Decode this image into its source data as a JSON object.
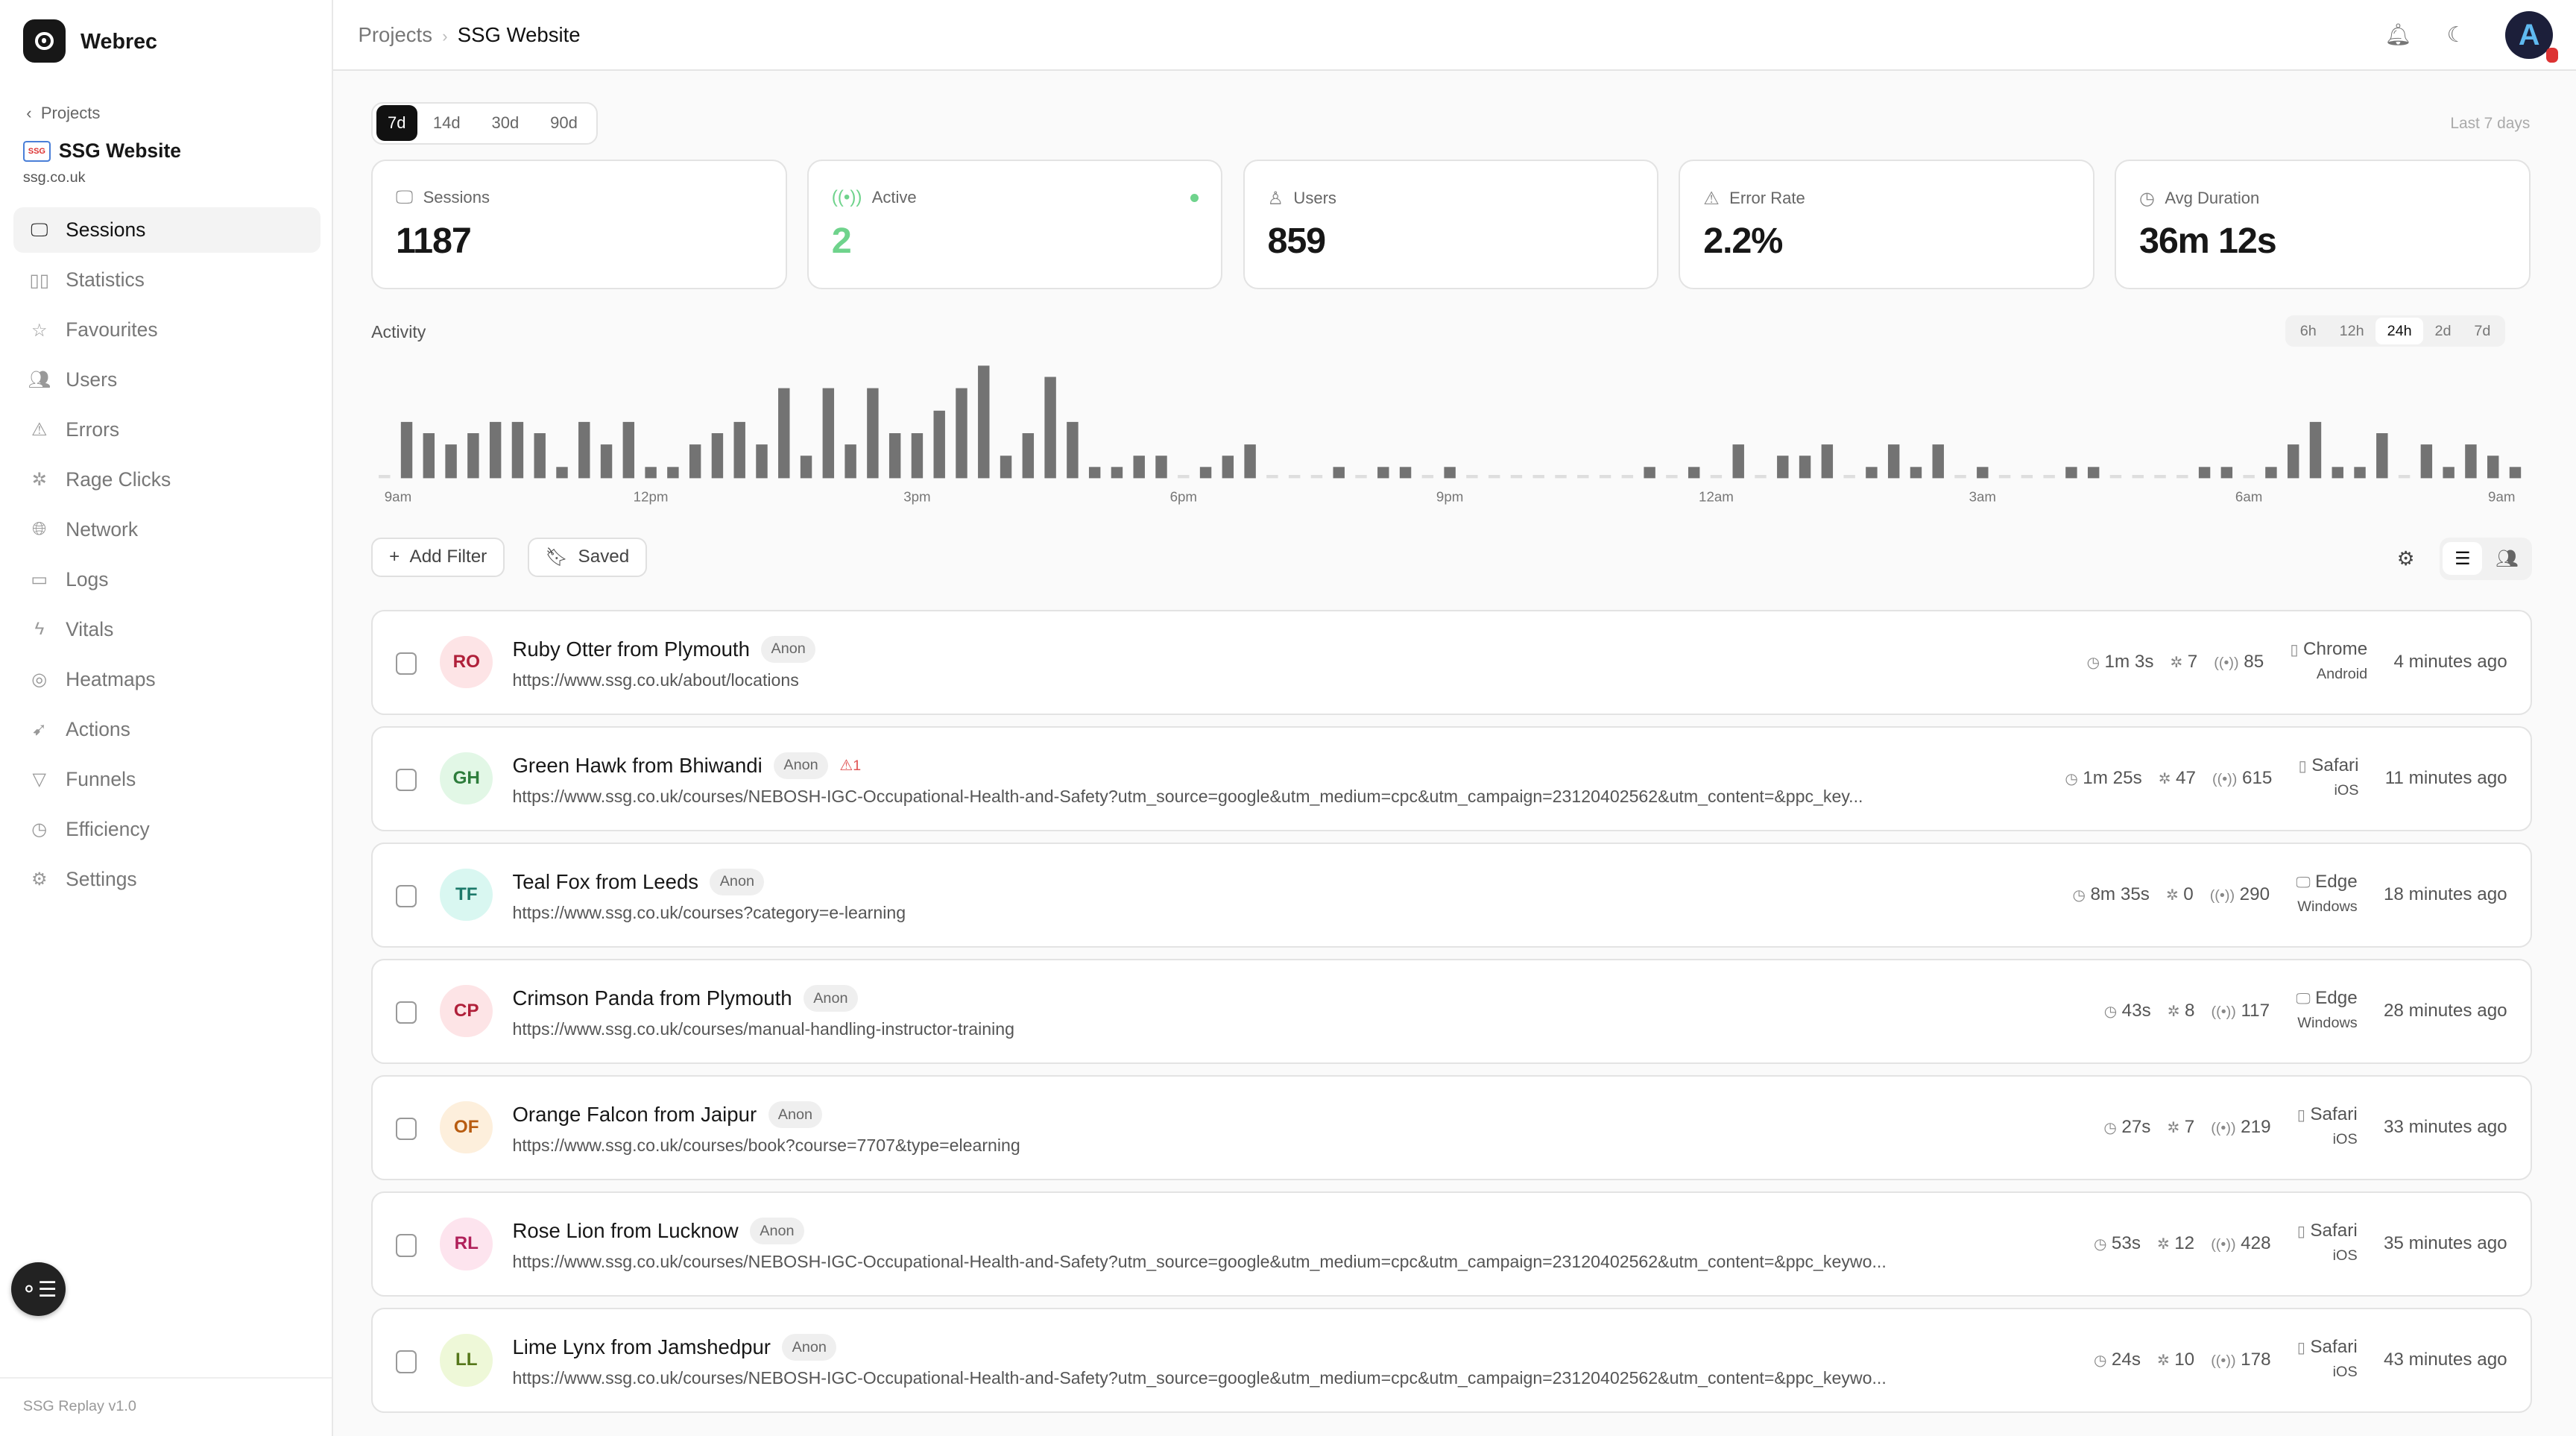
{
  "app": {
    "name": "Webrec",
    "back_label": "Projects",
    "project_name": "SSG Website",
    "project_domain": "ssg.co.uk",
    "version": "SSG Replay v1.0"
  },
  "sidebar": {
    "items": [
      {
        "label": "Sessions",
        "icon": "monitor-icon",
        "active": true
      },
      {
        "label": "Statistics",
        "icon": "bar-chart-icon"
      },
      {
        "label": "Favourites",
        "icon": "star-icon"
      },
      {
        "label": "Users",
        "icon": "users-icon"
      },
      {
        "label": "Errors",
        "icon": "warning-icon"
      },
      {
        "label": "Rage Clicks",
        "icon": "click-burst-icon"
      },
      {
        "label": "Network",
        "icon": "globe-icon"
      },
      {
        "label": "Logs",
        "icon": "terminal-icon"
      },
      {
        "label": "Vitals",
        "icon": "lightning-icon"
      },
      {
        "label": "Heatmaps",
        "icon": "heatmap-icon"
      },
      {
        "label": "Actions",
        "icon": "pointer-icon"
      },
      {
        "label": "Funnels",
        "icon": "funnel-icon"
      },
      {
        "label": "Efficiency",
        "icon": "clock-icon"
      },
      {
        "label": "Settings",
        "icon": "gear-icon"
      }
    ]
  },
  "header": {
    "breadcrumb": [
      "Projects",
      "SSG Website"
    ],
    "avatar_letter": "A"
  },
  "range": {
    "options": [
      "7d",
      "14d",
      "30d",
      "90d"
    ],
    "selected": "7d",
    "caption": "Last 7 days"
  },
  "stats": [
    {
      "label": "Sessions",
      "value": "1187",
      "icon": "monitor-icon"
    },
    {
      "label": "Active",
      "value": "2",
      "icon": "broadcast-icon",
      "color": "#6fd38c"
    },
    {
      "label": "Users",
      "value": "859",
      "icon": "user-icon"
    },
    {
      "label": "Error Rate",
      "value": "2.2%",
      "icon": "warning-icon"
    },
    {
      "label": "Avg Duration",
      "value": "36m 12s",
      "icon": "clock-icon"
    }
  ],
  "activity": {
    "title": "Activity",
    "granularity": [
      "6h",
      "12h",
      "24h",
      "2d",
      "7d"
    ],
    "selected": "24h"
  },
  "chart_data": {
    "type": "bar",
    "x_ticks": [
      "9am",
      "12pm",
      "3pm",
      "6pm",
      "9pm",
      "12am",
      "3am",
      "6am",
      "9am"
    ],
    "bar_color": "#737373",
    "values": [
      0,
      5,
      4,
      3,
      4,
      5,
      5,
      4,
      1,
      5,
      3,
      5,
      1,
      1,
      3,
      4,
      5,
      3,
      8,
      2,
      8,
      3,
      8,
      4,
      4,
      6,
      8,
      10,
      2,
      4,
      9,
      5,
      1,
      1,
      2,
      2,
      0,
      1,
      2,
      3,
      0,
      0,
      0,
      1,
      0,
      1,
      1,
      0,
      1,
      0,
      0,
      0,
      0,
      0,
      0,
      0,
      0,
      1,
      0,
      1,
      0,
      3,
      0,
      2,
      2,
      3,
      0,
      1,
      3,
      1,
      3,
      0,
      1,
      0,
      0,
      0,
      1,
      1,
      0,
      0,
      0,
      0,
      1,
      1,
      0,
      1,
      3,
      5,
      1,
      1,
      4,
      0,
      3,
      1,
      3,
      2,
      1
    ]
  },
  "toolbar": {
    "add_filter": "Add Filter",
    "saved": "Saved"
  },
  "sessions": [
    {
      "initials": "RO",
      "name": "Ruby Otter from Plymouth",
      "badge": "Anon",
      "url": "https://www.ssg.co.uk/about/locations",
      "duration": "1m 3s",
      "clicks": "7",
      "events": "85",
      "browser": "Chrome",
      "os": "Android",
      "device": "phone-icon",
      "ago": "4 minutes ago",
      "bg": "#fde4e6",
      "fg": "#b0203a"
    },
    {
      "initials": "GH",
      "name": "Green Hawk from Bhiwandi",
      "badge": "Anon",
      "errors": "1",
      "url": "https://www.ssg.co.uk/courses/NEBOSH-IGC-Occupational-Health-and-Safety?utm_source=google&utm_medium=cpc&utm_campaign=23120402562&utm_content=&ppc_key...",
      "duration": "1m 25s",
      "clicks": "47",
      "events": "615",
      "browser": "Safari",
      "os": "iOS",
      "device": "phone-icon",
      "ago": "11 minutes ago",
      "bg": "#e2f7e6",
      "fg": "#2e7d3c"
    },
    {
      "initials": "TF",
      "name": "Teal Fox from Leeds",
      "badge": "Anon",
      "url": "https://www.ssg.co.uk/courses?category=e-learning",
      "duration": "8m 35s",
      "clicks": "0",
      "events": "290",
      "browser": "Edge",
      "os": "Windows",
      "device": "monitor-icon",
      "ago": "18 minutes ago",
      "bg": "#d9f7f1",
      "fg": "#1d7a6b"
    },
    {
      "initials": "CP",
      "name": "Crimson Panda from Plymouth",
      "badge": "Anon",
      "url": "https://www.ssg.co.uk/courses/manual-handling-instructor-training",
      "duration": "43s",
      "clicks": "8",
      "events": "117",
      "browser": "Edge",
      "os": "Windows",
      "device": "monitor-icon",
      "ago": "28 minutes ago",
      "bg": "#fde4e6",
      "fg": "#b0203a"
    },
    {
      "initials": "OF",
      "name": "Orange Falcon from Jaipur",
      "badge": "Anon",
      "url": "https://www.ssg.co.uk/courses/book?course=7707&type=elearning",
      "duration": "27s",
      "clicks": "7",
      "events": "219",
      "browser": "Safari",
      "os": "iOS",
      "device": "phone-icon",
      "ago": "33 minutes ago",
      "bg": "#fdefdc",
      "fg": "#b85c10"
    },
    {
      "initials": "RL",
      "name": "Rose Lion from Lucknow",
      "badge": "Anon",
      "url": "https://www.ssg.co.uk/courses/NEBOSH-IGC-Occupational-Health-and-Safety?utm_source=google&utm_medium=cpc&utm_campaign=23120402562&utm_content=&ppc_keywo...",
      "duration": "53s",
      "clicks": "12",
      "events": "428",
      "browser": "Safari",
      "os": "iOS",
      "device": "phone-icon",
      "ago": "35 minutes ago",
      "bg": "#fde4ee",
      "fg": "#b0205a"
    },
    {
      "initials": "LL",
      "name": "Lime Lynx from Jamshedpur",
      "badge": "Anon",
      "url": "https://www.ssg.co.uk/courses/NEBOSH-IGC-Occupational-Health-and-Safety?utm_source=google&utm_medium=cpc&utm_campaign=23120402562&utm_content=&ppc_keywo...",
      "duration": "24s",
      "clicks": "10",
      "events": "178",
      "browser": "Safari",
      "os": "iOS",
      "device": "phone-icon",
      "ago": "43 minutes ago",
      "bg": "#eef8d8",
      "fg": "#55771a"
    }
  ]
}
